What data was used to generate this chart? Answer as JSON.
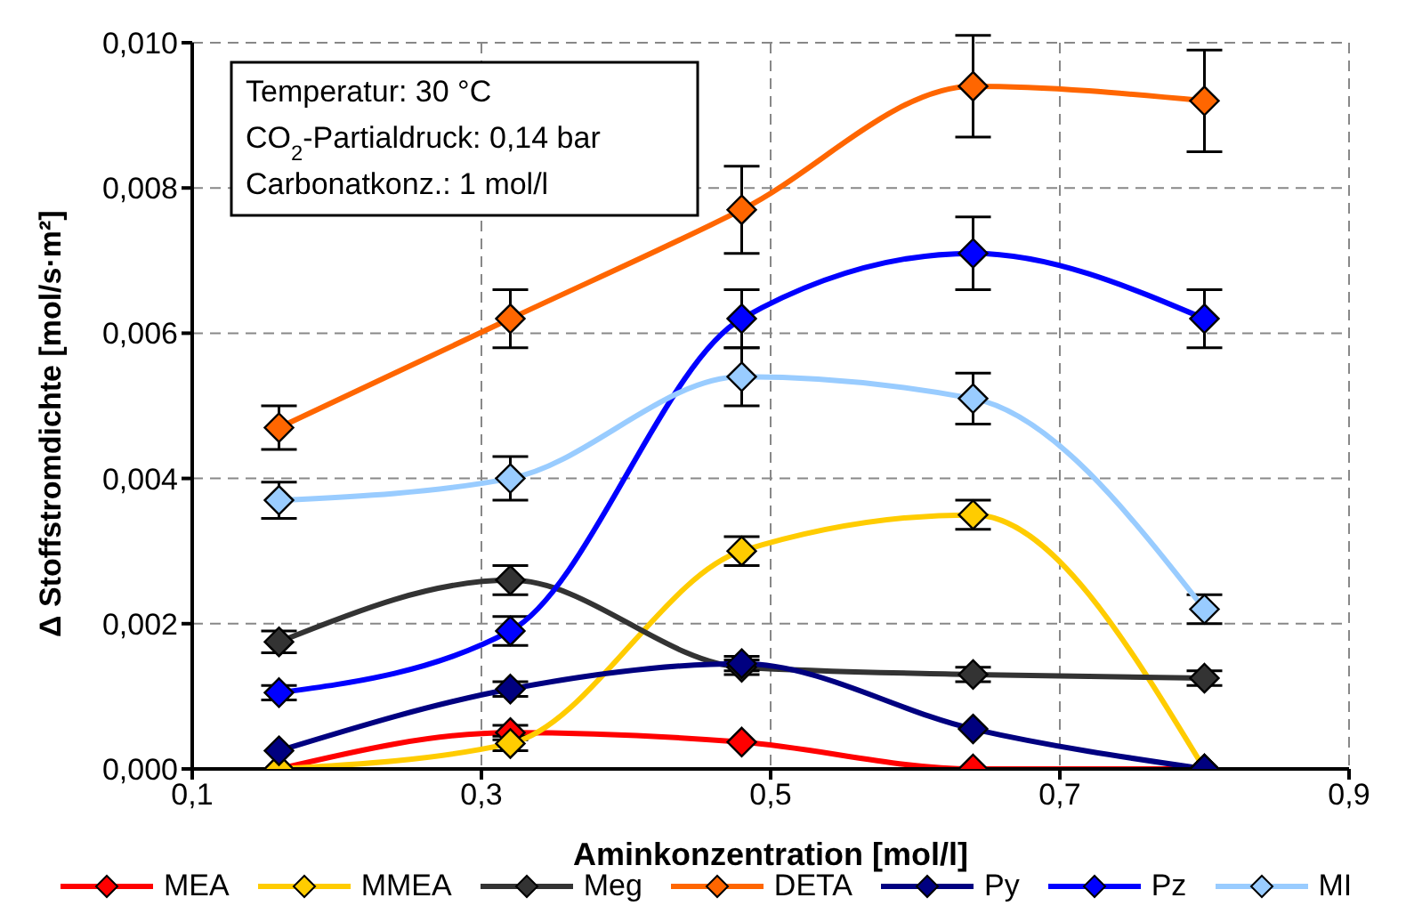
{
  "chart_data": {
    "type": "line",
    "xlabel": "Aminkonzentration [mol/l]",
    "ylabel": "Δ Stoffstromdichte [mol/s·m²]",
    "x": [
      0.16,
      0.32,
      0.48,
      0.64,
      0.8
    ],
    "xlim": [
      0.1,
      0.9
    ],
    "xticks": [
      {
        "value": 0.1,
        "label": "0,1"
      },
      {
        "value": 0.3,
        "label": "0,3"
      },
      {
        "value": 0.5,
        "label": "0,5"
      },
      {
        "value": 0.7,
        "label": "0,7"
      },
      {
        "value": 0.9,
        "label": "0,9"
      }
    ],
    "ylim": [
      0,
      0.01
    ],
    "yticks": [
      {
        "value": 0,
        "label": "0,000"
      },
      {
        "value": 0.002,
        "label": "0,002"
      },
      {
        "value": 0.004,
        "label": "0,004"
      },
      {
        "value": 0.006,
        "label": "0,006"
      },
      {
        "value": 0.008,
        "label": "0,008"
      },
      {
        "value": 0.01,
        "label": "0,010"
      }
    ],
    "grid": true,
    "legend": "bottom",
    "marker": "diamond",
    "line_style": "solid",
    "annotations": [
      "Temperatur: 30 °C",
      "CO$_{2}$-Partialdruck: 0,14 bar",
      "Carbonatkonz.: 1 mol/l"
    ],
    "series": [
      {
        "name": "MEA",
        "color": "#ff0000",
        "values": [
          0,
          0.0005,
          0.00037,
          0,
          0
        ],
        "errors": [
          null,
          0.0001,
          null,
          null,
          null
        ]
      },
      {
        "name": "MMEA",
        "color": "#ffcc00",
        "values": [
          0,
          0.00035,
          0.003,
          0.0035,
          0
        ],
        "errors": [
          null,
          0.0001,
          0.0002,
          0.0002,
          null
        ]
      },
      {
        "name": "Meg",
        "color": "#333333",
        "values": [
          0.00175,
          0.0026,
          0.0014,
          0.0013,
          0.00125
        ],
        "errors": [
          0.00015,
          0.0002,
          0.0001,
          0.0001,
          0.0001
        ]
      },
      {
        "name": "DETA",
        "color": "#ff6600",
        "values": [
          0.0047,
          0.0062,
          0.0077,
          0.0094,
          0.0092
        ],
        "errors": [
          0.0003,
          0.0004,
          0.0006,
          0.0007,
          0.0007
        ]
      },
      {
        "name": "Py",
        "color": "#000080",
        "values": [
          0.00025,
          0.0011,
          0.00145,
          0.00055,
          0
        ],
        "errors": [
          null,
          0.0001,
          0.0001,
          null,
          null
        ]
      },
      {
        "name": "Pz",
        "color": "#0000ff",
        "values": [
          0.00105,
          0.0019,
          0.0062,
          0.0071,
          0.0062
        ],
        "errors": [
          0.0001,
          0.0002,
          0.0004,
          0.0005,
          0.0004
        ]
      },
      {
        "name": "MI",
        "color": "#99ccff",
        "values": [
          0.0037,
          0.004,
          0.0054,
          0.0051,
          0.0022
        ],
        "errors": [
          0.00025,
          0.0003,
          0.0004,
          0.00035,
          0.0002
        ]
      }
    ]
  }
}
